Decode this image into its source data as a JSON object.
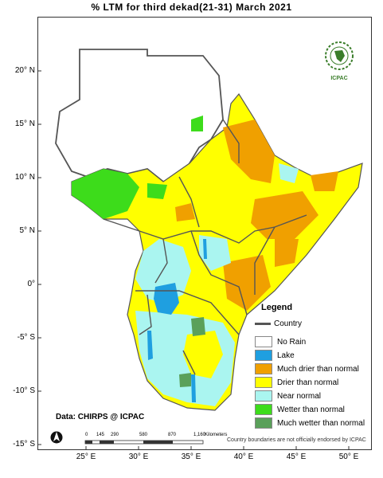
{
  "title": "% LTM  for    third  dekad(21-31)  March 2021",
  "lat_labels": [
    "20° N",
    "15° N",
    "10° N",
    "5° N",
    "0°",
    "-5° S",
    "-10° S",
    "-15° S"
  ],
  "lon_labels": [
    "25° E",
    "30° E",
    "35° E",
    "40° E",
    "45° E",
    "50° E"
  ],
  "legend": {
    "title": "Legend",
    "country": "Country",
    "items": [
      {
        "label": "No Rain",
        "color": "#ffffff"
      },
      {
        "label": "Lake",
        "color": "#1f9fe0"
      },
      {
        "label": "Much drier than normal",
        "color": "#f0a000"
      },
      {
        "label": "Drier than normal",
        "color": "#ffff00"
      },
      {
        "label": "Near normal",
        "color": "#aaf5f0"
      },
      {
        "label": "Wetter than normal",
        "color": "#3ddc1b"
      },
      {
        "label": "Much wetter than normal",
        "color": "#5aa05a"
      }
    ]
  },
  "credit": "Data: CHIRPS @ ICPAC",
  "disclaimer": "Country boundaries are not officially endorsed by ICPAC",
  "scale": {
    "ticks": [
      "0",
      "145",
      "290",
      "580",
      "870",
      "1,160"
    ],
    "unit": "Kilometers"
  },
  "logo": {
    "name": "IGAD",
    "caption": "ICPAC"
  }
}
